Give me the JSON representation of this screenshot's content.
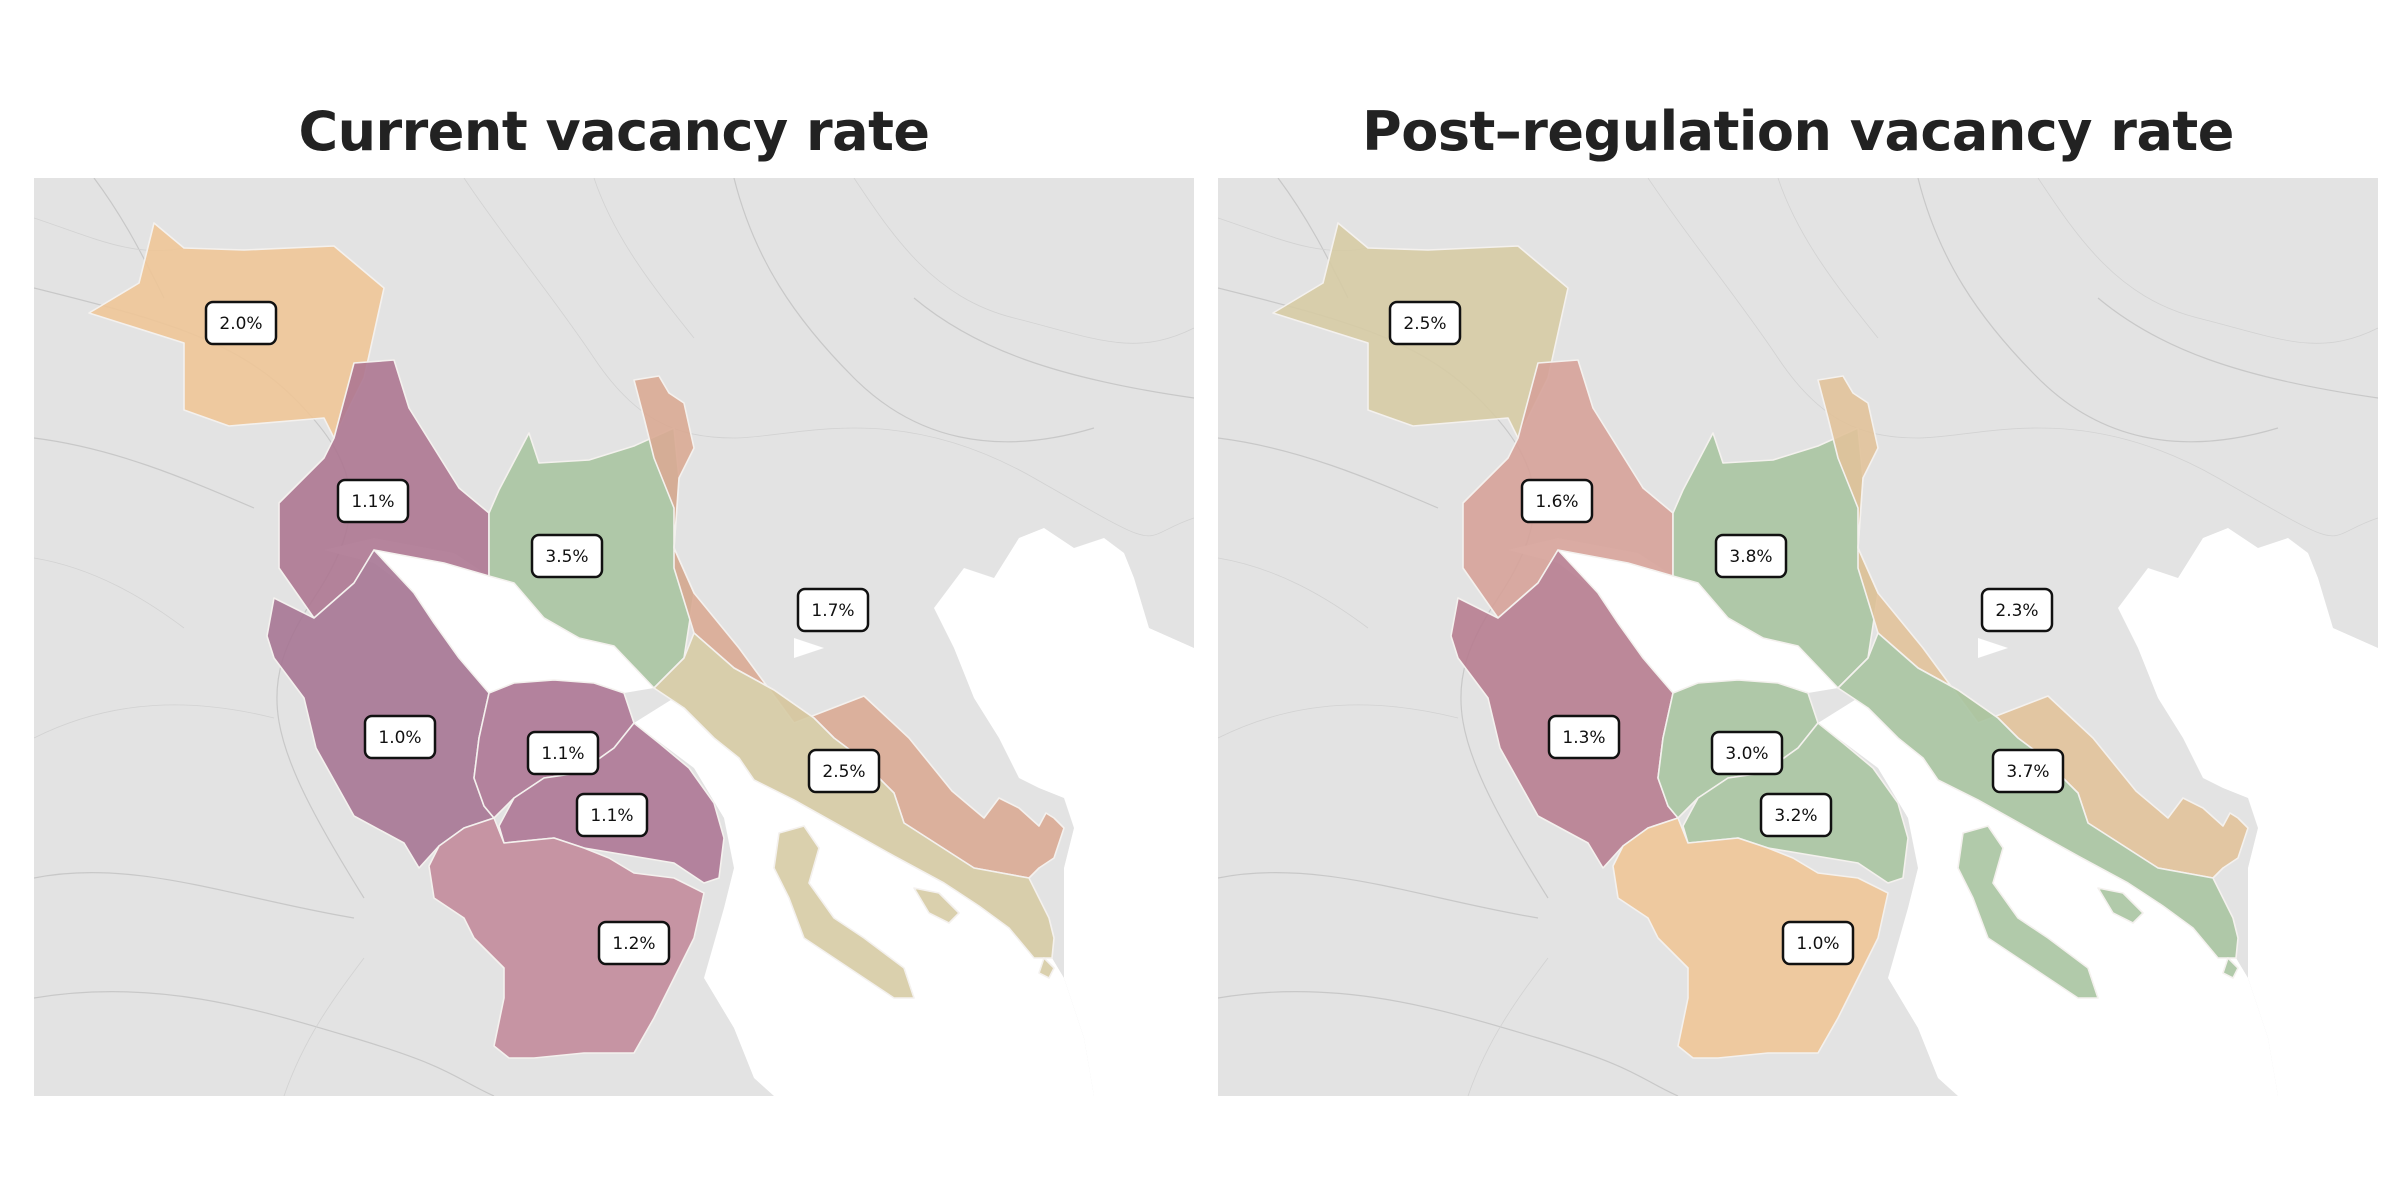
{
  "panels": [
    {
      "title": "Current vacancy rate",
      "districts": [
        {
          "id": "northwest",
          "label": "2.0%",
          "color": "#eec597"
        },
        {
          "id": "west-upper",
          "label": "1.1%",
          "color": "#ad7791"
        },
        {
          "id": "north-central",
          "label": "3.5%",
          "color": "#a9c4a1"
        },
        {
          "id": "east",
          "label": "1.7%",
          "color": "#d9aa93"
        },
        {
          "id": "southwest",
          "label": "1.0%",
          "color": "#a67593"
        },
        {
          "id": "peninsula-north",
          "label": "1.1%",
          "color": "#ad7795"
        },
        {
          "id": "peninsula-south",
          "label": "1.1%",
          "color": "#ad7795"
        },
        {
          "id": "southeast-coast",
          "label": "2.5%",
          "color": "#d6cba4"
        },
        {
          "id": "south",
          "label": "1.2%",
          "color": "#c28b9b"
        }
      ]
    },
    {
      "title": "Post–regulation vacancy rate",
      "districts": [
        {
          "id": "northwest",
          "label": "2.5%",
          "color": "#d6cba4"
        },
        {
          "id": "west-upper",
          "label": "1.6%",
          "color": "#d6a299"
        },
        {
          "id": "north-central",
          "label": "3.8%",
          "color": "#a9c4a1"
        },
        {
          "id": "east",
          "label": "2.3%",
          "color": "#e1c29a"
        },
        {
          "id": "southwest",
          "label": "1.3%",
          "color": "#b77d90"
        },
        {
          "id": "peninsula-north",
          "label": "3.0%",
          "color": "#a9c4a1"
        },
        {
          "id": "peninsula-south",
          "label": "3.2%",
          "color": "#a9c4a1"
        },
        {
          "id": "southeast-coast",
          "label": "3.7%",
          "color": "#a9c4a1"
        },
        {
          "id": "south",
          "label": "1.0%",
          "color": "#eec597"
        }
      ]
    }
  ],
  "map_colors": {
    "land": "#e3e3e3",
    "water": "#ffffff",
    "roads": "#c8c8c8"
  }
}
